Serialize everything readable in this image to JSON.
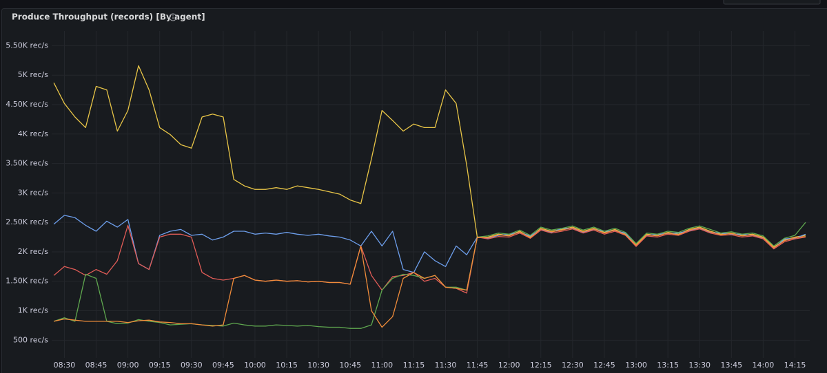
{
  "chart_data": {
    "type": "line",
    "title": "Produce Throughput (records) [By agent]",
    "x": [
      "08:25",
      "08:30",
      "08:35",
      "08:40",
      "08:45",
      "08:50",
      "08:55",
      "09:00",
      "09:05",
      "09:10",
      "09:15",
      "09:20",
      "09:25",
      "09:30",
      "09:35",
      "09:40",
      "09:45",
      "09:50",
      "09:55",
      "10:00",
      "10:05",
      "10:10",
      "10:15",
      "10:20",
      "10:25",
      "10:30",
      "10:35",
      "10:40",
      "10:45",
      "10:50",
      "10:55",
      "11:00",
      "11:05",
      "11:10",
      "11:15",
      "11:20",
      "11:25",
      "11:30",
      "11:35",
      "11:40",
      "11:45",
      "11:50",
      "11:55",
      "12:00",
      "12:05",
      "12:10",
      "12:15",
      "12:20",
      "12:25",
      "12:30",
      "12:35",
      "12:40",
      "12:45",
      "12:50",
      "12:55",
      "13:00",
      "13:05",
      "13:10",
      "13:15",
      "13:20",
      "13:25",
      "13:30",
      "13:35",
      "13:40",
      "13:45",
      "13:50",
      "13:55",
      "14:00",
      "14:05",
      "14:10",
      "14:15",
      "14:20"
    ],
    "series": [
      {
        "color": "#e8c547",
        "values": [
          4870,
          4520,
          4290,
          4110,
          4810,
          4750,
          4050,
          4400,
          5160,
          4750,
          4110,
          3990,
          3820,
          3760,
          4290,
          4340,
          4290,
          3230,
          3120,
          3060,
          3060,
          3090,
          3060,
          3120,
          3090,
          3060,
          3020,
          2980,
          2880,
          2820,
          3580,
          4400,
          4230,
          4050,
          4170,
          4110,
          4110,
          4750,
          4520,
          3470,
          2240,
          2250,
          2300,
          2280,
          2350,
          2250,
          2400,
          2350,
          2380,
          2420,
          2350,
          2400,
          2330,
          2380,
          2300,
          2120,
          2300,
          2280,
          2330,
          2300,
          2380,
          2420,
          2350,
          2300,
          2320,
          2280,
          2300,
          2250,
          2080,
          2200,
          2250,
          2280
        ]
      },
      {
        "color": "#6d9eeb",
        "values": [
          2470,
          2620,
          2580,
          2450,
          2350,
          2520,
          2420,
          2550,
          1800,
          1700,
          2280,
          2350,
          2380,
          2280,
          2300,
          2200,
          2250,
          2350,
          2350,
          2300,
          2320,
          2300,
          2330,
          2300,
          2280,
          2300,
          2270,
          2250,
          2200,
          2100,
          2350,
          2100,
          2350,
          1700,
          1650,
          2000,
          1850,
          1750,
          2100,
          1950,
          2250,
          2230,
          2280,
          2300,
          2330,
          2270,
          2380,
          2330,
          2400,
          2400,
          2330,
          2380,
          2350,
          2360,
          2320,
          2100,
          2280,
          2300,
          2310,
          2320,
          2360,
          2400,
          2330,
          2320,
          2300,
          2300,
          2280,
          2230,
          2060,
          2220,
          2230,
          2300
        ]
      },
      {
        "color": "#e15c57",
        "values": [
          1600,
          1750,
          1700,
          1600,
          1700,
          1620,
          1850,
          2450,
          1800,
          1700,
          2250,
          2300,
          2300,
          2250,
          1650,
          1550,
          1520,
          1550,
          1600,
          1520,
          1500,
          1520,
          1500,
          1510,
          1490,
          1500,
          1480,
          1480,
          1450,
          2100,
          1600,
          1350,
          1580,
          1600,
          1650,
          1500,
          1550,
          1400,
          1380,
          1300,
          2250,
          2220,
          2260,
          2250,
          2320,
          2230,
          2370,
          2320,
          2350,
          2390,
          2320,
          2370,
          2300,
          2350,
          2280,
          2090,
          2270,
          2250,
          2300,
          2280,
          2350,
          2390,
          2320,
          2280,
          2290,
          2250,
          2270,
          2220,
          2050,
          2170,
          2220,
          2250
        ]
      },
      {
        "color": "#5fa84f",
        "values": [
          820,
          880,
          820,
          1620,
          1550,
          820,
          780,
          790,
          850,
          820,
          800,
          760,
          770,
          780,
          760,
          750,
          740,
          790,
          760,
          740,
          740,
          760,
          750,
          740,
          750,
          730,
          720,
          720,
          700,
          700,
          760,
          1350,
          1550,
          1620,
          1600,
          1550,
          1600,
          1400,
          1400,
          1350,
          2250,
          2270,
          2320,
          2300,
          2370,
          2280,
          2420,
          2370,
          2400,
          2440,
          2370,
          2420,
          2350,
          2400,
          2330,
          2140,
          2320,
          2300,
          2350,
          2330,
          2400,
          2440,
          2380,
          2320,
          2340,
          2300,
          2320,
          2270,
          2100,
          2230,
          2280,
          2500
        ]
      },
      {
        "color": "#f08c3a",
        "values": [
          820,
          860,
          840,
          820,
          820,
          820,
          820,
          800,
          830,
          840,
          810,
          800,
          780,
          780,
          760,
          740,
          760,
          1550,
          1600,
          1520,
          1500,
          1520,
          1500,
          1510,
          1490,
          1500,
          1480,
          1480,
          1450,
          2100,
          1000,
          720,
          900,
          1550,
          1650,
          1550,
          1600,
          1400,
          1380,
          1350,
          2250,
          2240,
          2290,
          2270,
          2340,
          2240,
          2390,
          2340,
          2370,
          2410,
          2340,
          2390,
          2320,
          2370,
          2290,
          2110,
          2290,
          2270,
          2320,
          2290,
          2370,
          2410,
          2340,
          2290,
          2310,
          2270,
          2290,
          2240,
          2070,
          2190,
          2240,
          2260
        ]
      }
    ],
    "xlim": [
      "08:24",
      "14:22"
    ],
    "xticks": [
      "08:30",
      "08:45",
      "09:00",
      "09:15",
      "09:30",
      "09:45",
      "10:00",
      "10:15",
      "10:30",
      "10:45",
      "11:00",
      "11:15",
      "11:30",
      "11:45",
      "12:00",
      "12:15",
      "12:30",
      "12:45",
      "13:00",
      "13:15",
      "13:30",
      "13:45",
      "14:00",
      "14:15"
    ],
    "ylim": [
      200,
      5750
    ],
    "yticks": [
      {
        "value": 500,
        "label": "500 rec/s"
      },
      {
        "value": 1000,
        "label": "1K rec/s"
      },
      {
        "value": 1500,
        "label": "1.50K rec/s"
      },
      {
        "value": 2000,
        "label": "2K rec/s"
      },
      {
        "value": 2500,
        "label": "2.50K rec/s"
      },
      {
        "value": 3000,
        "label": "3K rec/s"
      },
      {
        "value": 3500,
        "label": "3.50K rec/s"
      },
      {
        "value": 4000,
        "label": "4K rec/s"
      },
      {
        "value": 4500,
        "label": "4.50K rec/s"
      },
      {
        "value": 5000,
        "label": "5K rec/s"
      },
      {
        "value": 5500,
        "label": "5.50K rec/s"
      }
    ],
    "grid": true
  }
}
